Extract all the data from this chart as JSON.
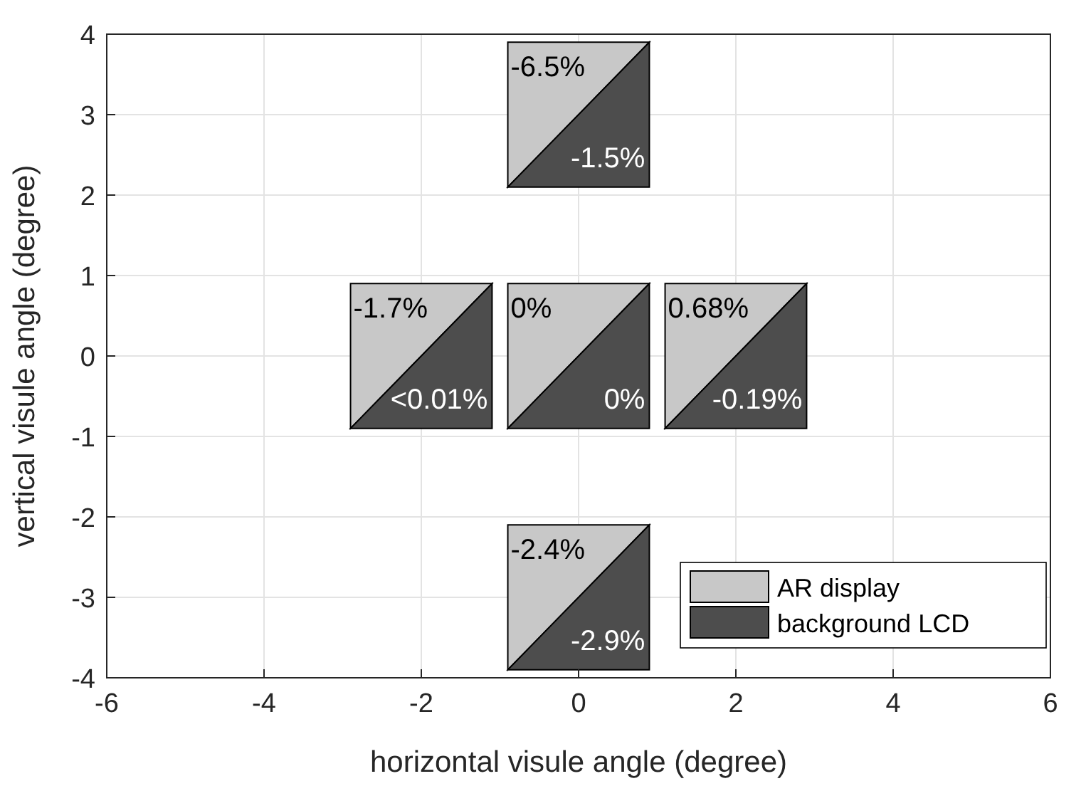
{
  "chart_data": {
    "type": "scatter",
    "xlabel": "horizontal visule angle (degree)",
    "ylabel": "vertical visule angle (degree)",
    "xlim": [
      -6,
      6
    ],
    "ylim": [
      -4,
      4
    ],
    "xticks": [
      -6,
      -4,
      -2,
      0,
      2,
      4,
      6
    ],
    "yticks": [
      -4,
      -3,
      -2,
      -1,
      0,
      1,
      2,
      3,
      4
    ],
    "grid": true,
    "legend": "bottom right",
    "marker": "triangle",
    "series": [
      {
        "name": "AR display",
        "color": "#c8c8c8",
        "x": [
          0,
          -2,
          0,
          2,
          0
        ],
        "values": [
          3,
          0,
          0,
          0,
          -3
        ]
      },
      {
        "name": "background LCD",
        "color": "#4d4d4d",
        "x": [
          0,
          -2,
          0,
          2,
          0
        ],
        "values": [
          3,
          0,
          0,
          0,
          -3
        ]
      }
    ],
    "annotations": [
      {
        "text": "-6.5%",
        "x": 0,
        "y": 3
      },
      {
        "text": "-1.5%",
        "x": 0,
        "y": 3
      },
      {
        "text": "-1.7%",
        "x": -2,
        "y": 0
      },
      {
        "text": "<0.01%",
        "x": -2,
        "y": 0
      },
      {
        "text": "0%",
        "x": 0,
        "y": 0
      },
      {
        "text": "0%",
        "x": 0,
        "y": 0
      },
      {
        "text": "0.68%",
        "x": 2,
        "y": 0
      },
      {
        "text": "-0.19%",
        "x": 2,
        "y": 0
      },
      {
        "text": "-2.4%",
        "x": 0,
        "y": -3
      },
      {
        "text": "-2.9%",
        "x": 0,
        "y": -3
      }
    ]
  }
}
